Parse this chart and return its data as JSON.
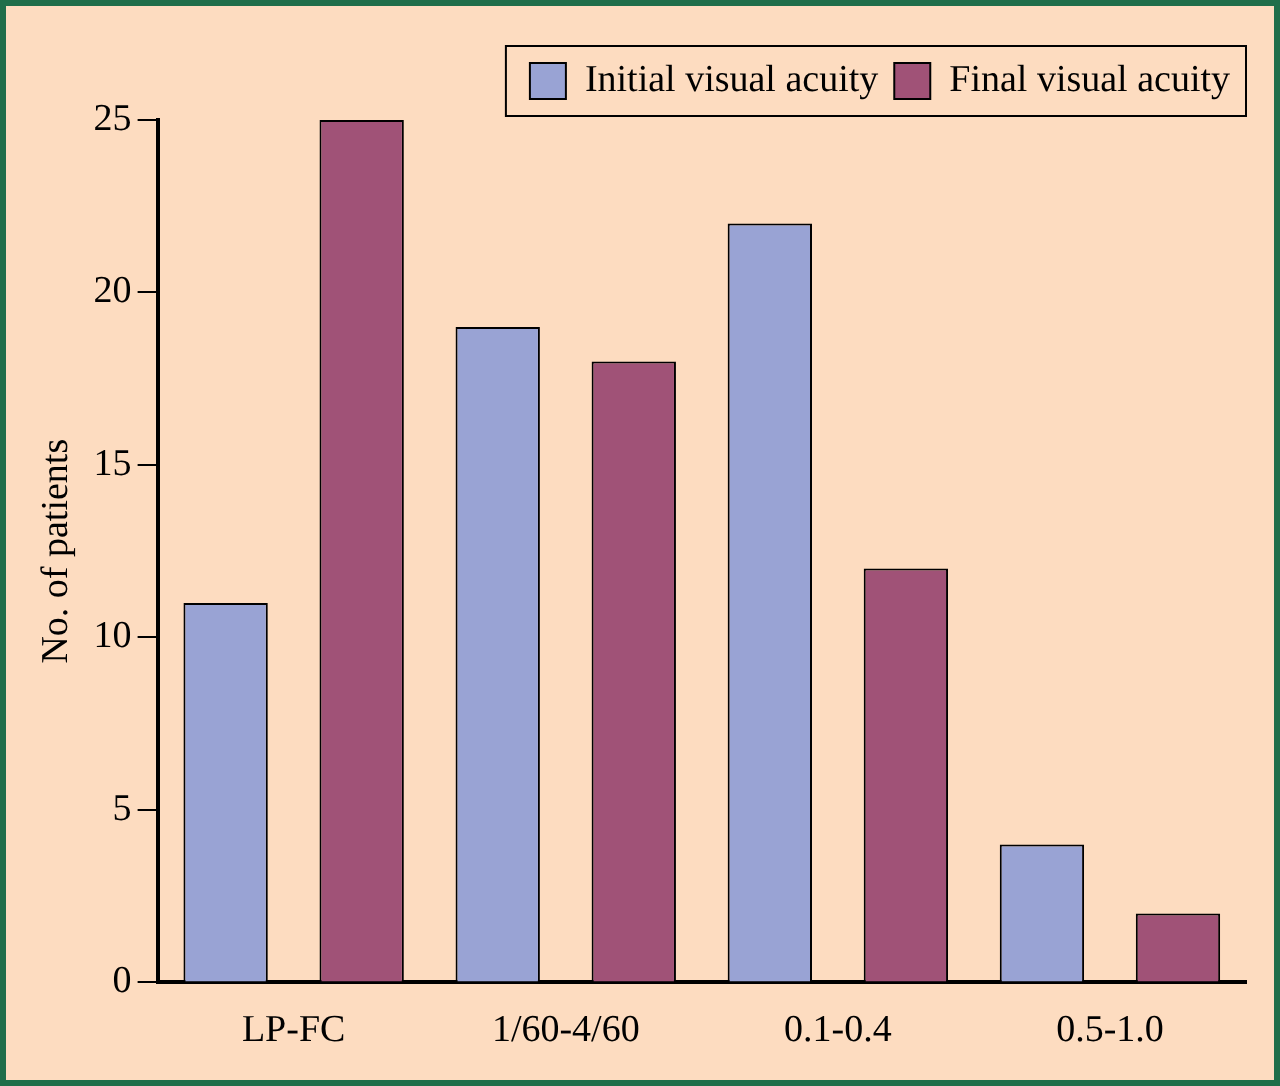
{
  "chart_data": {
    "type": "bar",
    "ylabel": "No. of patients",
    "categories": [
      "LP-FC",
      "1/60-4/60",
      "0.1-0.4",
      "0.5-1.0"
    ],
    "series": [
      {
        "name": "Initial visual acuity",
        "color": "#99a3d4",
        "values": [
          11,
          19,
          22,
          4
        ]
      },
      {
        "name": "Final visual acuity",
        "color": "#a05277",
        "values": [
          25,
          18,
          12,
          2
        ]
      }
    ],
    "ylim": [
      0,
      25
    ],
    "yticks": [
      0,
      5,
      10,
      15,
      20,
      25
    ],
    "grid": false,
    "legend": "top right"
  }
}
